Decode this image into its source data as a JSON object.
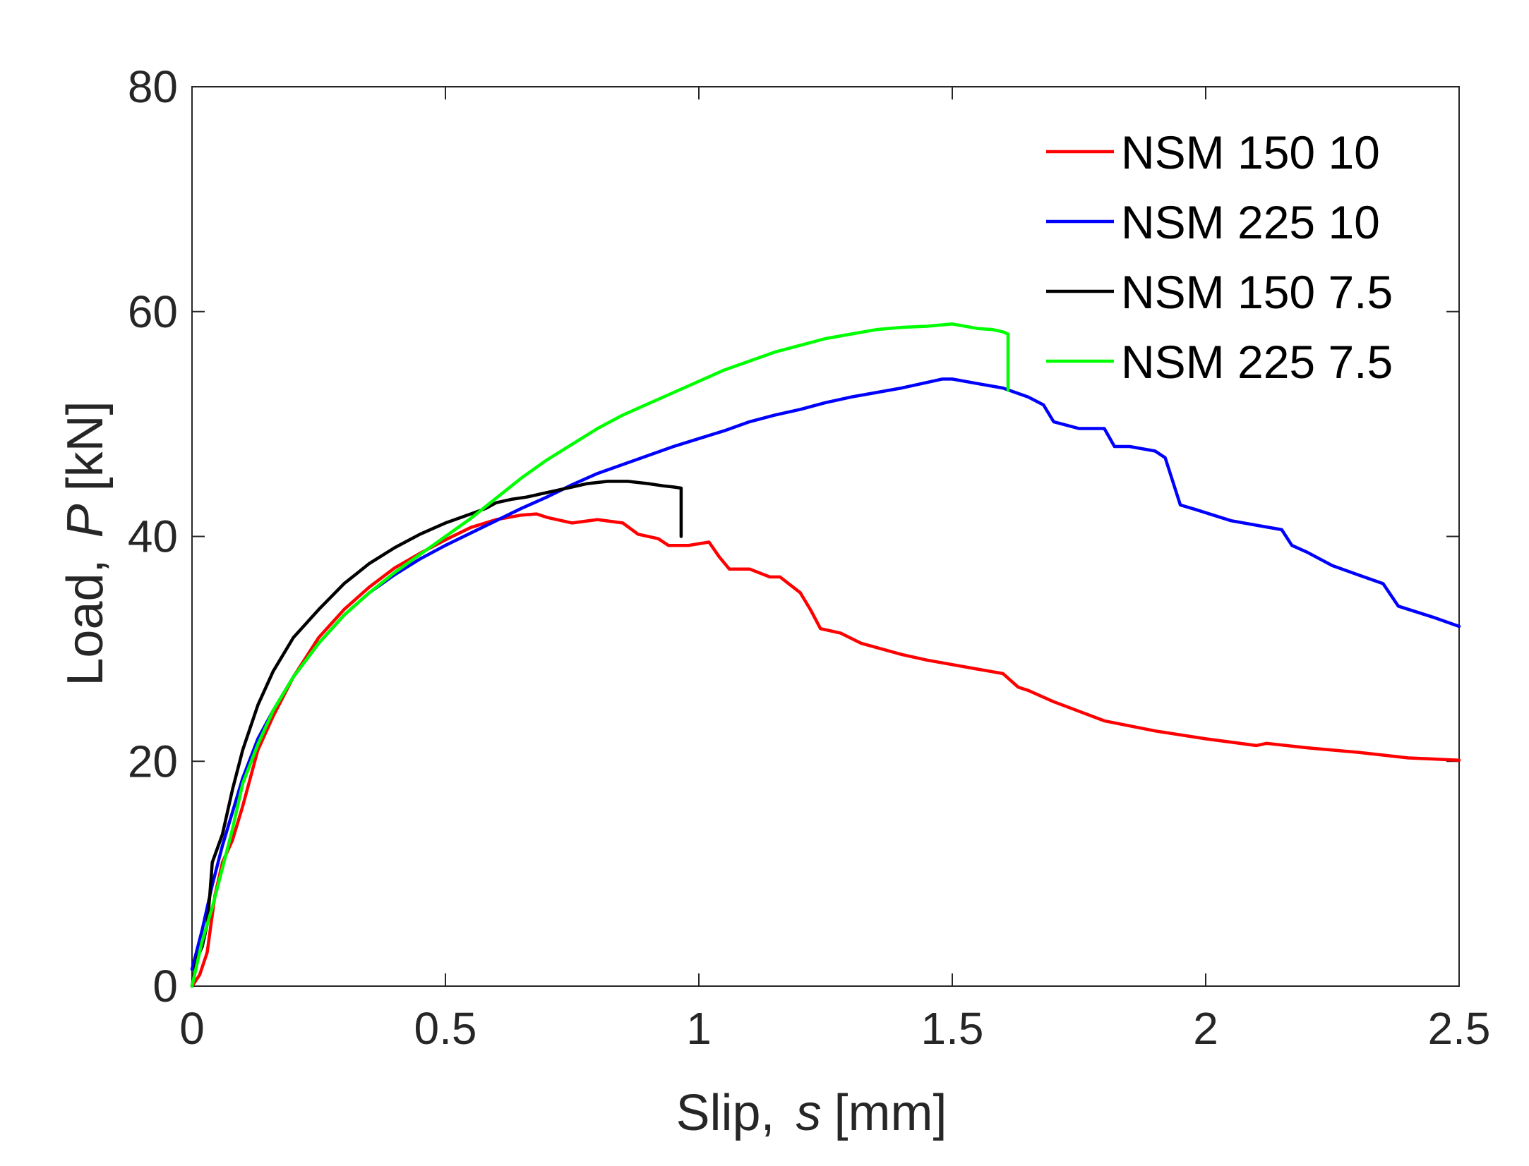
{
  "chart_data": {
    "type": "line",
    "title": "",
    "xlabel_prefix": "Slip,",
    "xlabel_symbol": "s",
    "xlabel_unit": "[mm]",
    "ylabel_prefix": "Load,",
    "ylabel_symbol": "P",
    "ylabel_unit": "[kN]",
    "xlim": [
      0,
      2.5
    ],
    "ylim": [
      0,
      80
    ],
    "xticks": [
      0,
      0.5,
      1,
      1.5,
      2,
      2.5
    ],
    "xtick_labels": [
      "0",
      "0.5",
      "1",
      "1.5",
      "2",
      "2.5"
    ],
    "yticks": [
      0,
      20,
      40,
      60,
      80
    ],
    "ytick_labels": [
      "0",
      "20",
      "40",
      "60",
      "80"
    ],
    "grid": false,
    "legend_position": "top-right",
    "series": [
      {
        "name": "NSM 150 10",
        "color": "#ff0000",
        "x": [
          0.0,
          0.015,
          0.03,
          0.045,
          0.06,
          0.08,
          0.1,
          0.13,
          0.16,
          0.2,
          0.25,
          0.3,
          0.35,
          0.4,
          0.45,
          0.5,
          0.55,
          0.6,
          0.65,
          0.68,
          0.7,
          0.75,
          0.8,
          0.85,
          0.88,
          0.92,
          0.94,
          0.98,
          1.02,
          1.04,
          1.06,
          1.1,
          1.14,
          1.16,
          1.2,
          1.22,
          1.24,
          1.28,
          1.32,
          1.4,
          1.45,
          1.5,
          1.55,
          1.6,
          1.63,
          1.65,
          1.7,
          1.8,
          1.9,
          2.0,
          2.1,
          2.12,
          2.2,
          2.3,
          2.4,
          2.5
        ],
        "y": [
          0.0,
          1.0,
          3.0,
          8.0,
          11.0,
          13.0,
          16.0,
          21.0,
          24.0,
          27.5,
          31.0,
          33.5,
          35.5,
          37.2,
          38.5,
          39.7,
          40.8,
          41.5,
          41.9,
          42.0,
          41.7,
          41.2,
          41.5,
          41.2,
          40.2,
          39.8,
          39.2,
          39.2,
          39.5,
          38.2,
          37.1,
          37.1,
          36.4,
          36.4,
          35.0,
          33.5,
          31.8,
          31.4,
          30.5,
          29.5,
          29.0,
          28.6,
          28.2,
          27.8,
          26.6,
          26.3,
          25.3,
          23.6,
          22.7,
          22.0,
          21.4,
          21.6,
          21.2,
          20.8,
          20.3,
          20.1
        ]
      },
      {
        "name": "NSM 225 10",
        "color": "#0000ff",
        "x": [
          0.0,
          0.02,
          0.04,
          0.06,
          0.08,
          0.1,
          0.13,
          0.16,
          0.2,
          0.25,
          0.3,
          0.35,
          0.4,
          0.45,
          0.5,
          0.55,
          0.6,
          0.65,
          0.7,
          0.75,
          0.8,
          0.85,
          0.9,
          0.95,
          1.0,
          1.05,
          1.1,
          1.15,
          1.2,
          1.25,
          1.3,
          1.35,
          1.4,
          1.45,
          1.48,
          1.5,
          1.55,
          1.6,
          1.65,
          1.68,
          1.7,
          1.75,
          1.8,
          1.82,
          1.85,
          1.9,
          1.92,
          1.95,
          1.98,
          2.05,
          2.1,
          2.15,
          2.17,
          2.2,
          2.25,
          2.3,
          2.35,
          2.38,
          2.45,
          2.5
        ],
        "y": [
          1.5,
          5.0,
          9.0,
          12.5,
          15.5,
          18.5,
          22.0,
          24.5,
          27.5,
          30.5,
          33.0,
          35.0,
          36.6,
          38.0,
          39.2,
          40.3,
          41.4,
          42.5,
          43.5,
          44.6,
          45.6,
          46.4,
          47.2,
          48.0,
          48.7,
          49.4,
          50.2,
          50.8,
          51.3,
          51.9,
          52.4,
          52.8,
          53.2,
          53.7,
          54.0,
          54.0,
          53.6,
          53.2,
          52.4,
          51.7,
          50.2,
          49.6,
          49.6,
          48.0,
          48.0,
          47.6,
          47.0,
          42.8,
          42.4,
          41.4,
          41.0,
          40.6,
          39.2,
          38.6,
          37.4,
          36.6,
          35.8,
          33.8,
          32.8,
          32.0
        ]
      },
      {
        "name": "NSM 150 7.5",
        "color": "#000000",
        "x": [
          0.0,
          0.01,
          0.02,
          0.03,
          0.035,
          0.04,
          0.06,
          0.08,
          0.1,
          0.13,
          0.16,
          0.2,
          0.25,
          0.3,
          0.35,
          0.4,
          0.45,
          0.5,
          0.55,
          0.58,
          0.6,
          0.63,
          0.66,
          0.7,
          0.75,
          0.78,
          0.82,
          0.86,
          0.9,
          0.93,
          0.95,
          0.965,
          0.965
        ],
        "y": [
          0.0,
          2.5,
          3.5,
          5.5,
          8.0,
          11.0,
          13.5,
          17.5,
          21.0,
          25.0,
          28.0,
          31.0,
          33.5,
          35.8,
          37.6,
          39.0,
          40.2,
          41.2,
          42.0,
          42.5,
          43.0,
          43.3,
          43.5,
          43.9,
          44.4,
          44.7,
          44.9,
          44.9,
          44.7,
          44.5,
          44.4,
          44.3,
          40.0
        ]
      },
      {
        "name": "NSM 225 7.5",
        "color": "#00ff00",
        "x": [
          0.0,
          0.02,
          0.04,
          0.06,
          0.08,
          0.1,
          0.13,
          0.16,
          0.2,
          0.25,
          0.3,
          0.35,
          0.4,
          0.45,
          0.5,
          0.55,
          0.6,
          0.65,
          0.7,
          0.75,
          0.8,
          0.85,
          0.9,
          0.95,
          1.0,
          1.05,
          1.1,
          1.15,
          1.2,
          1.25,
          1.3,
          1.35,
          1.4,
          1.45,
          1.5,
          1.55,
          1.58,
          1.6,
          1.61,
          1.61
        ],
        "y": [
          0.0,
          4.0,
          7.0,
          10.5,
          14.0,
          18.0,
          21.5,
          24.5,
          27.5,
          30.5,
          33.0,
          35.0,
          36.8,
          38.4,
          40.0,
          41.6,
          43.4,
          45.2,
          46.8,
          48.2,
          49.6,
          50.8,
          51.8,
          52.8,
          53.8,
          54.8,
          55.6,
          56.4,
          57.0,
          57.6,
          58.0,
          58.4,
          58.6,
          58.7,
          58.9,
          58.5,
          58.4,
          58.2,
          58.0,
          53.0
        ]
      }
    ]
  }
}
